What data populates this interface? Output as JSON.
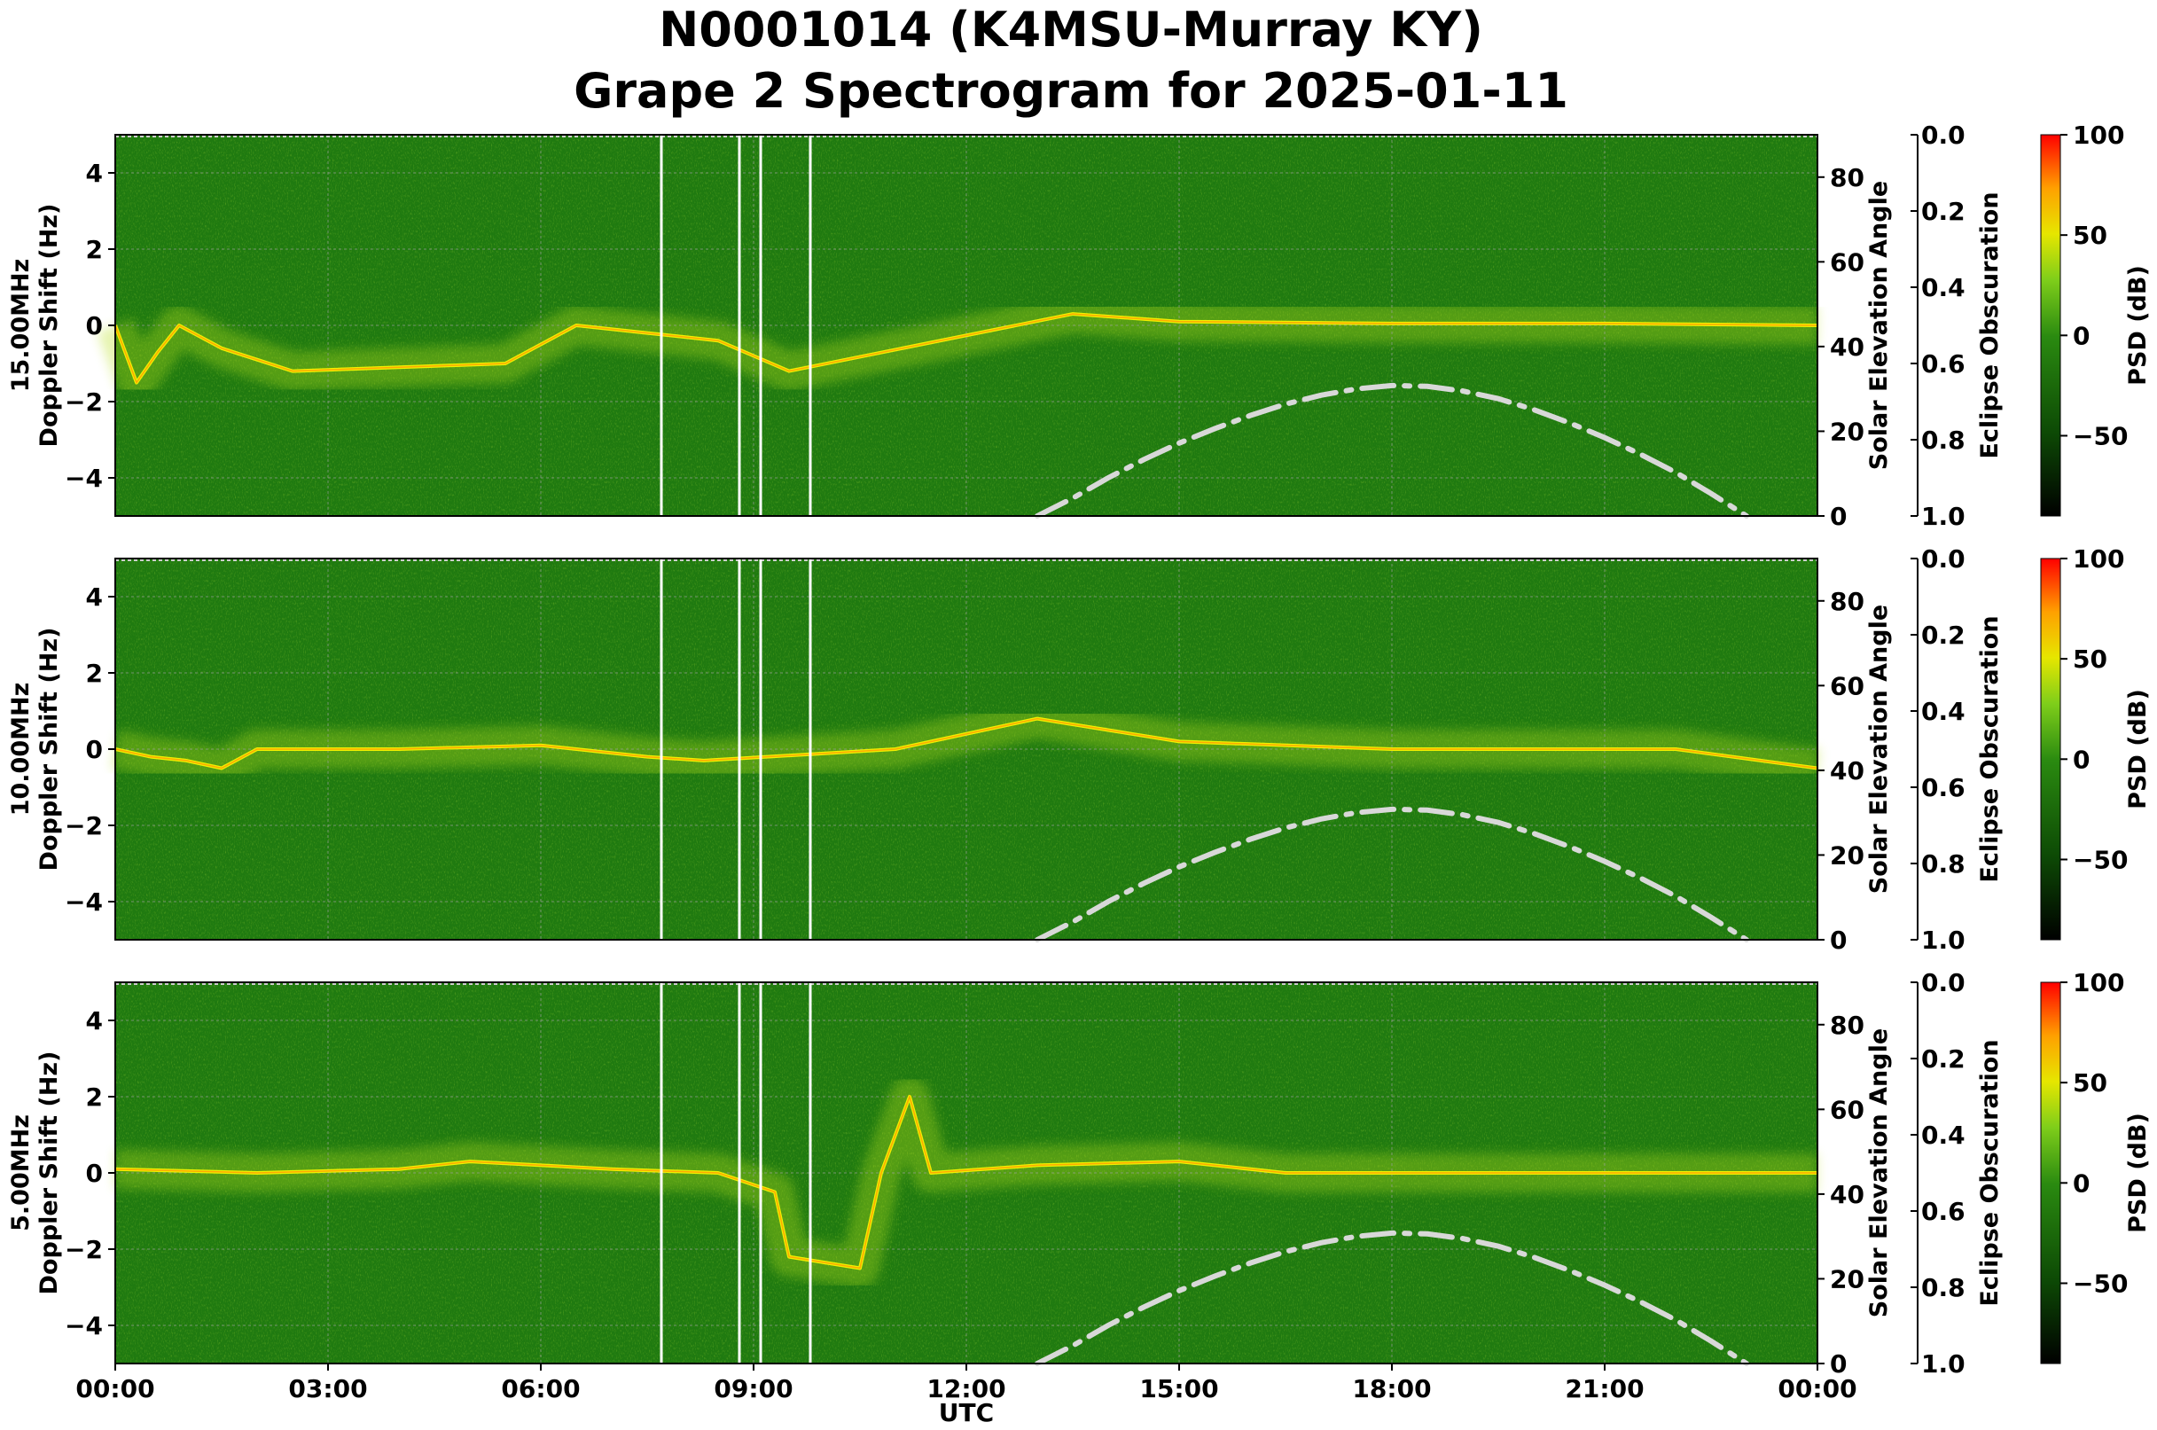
{
  "title_line1": "N0001014 (K4MSU-Murray KY)",
  "title_line2": "Grape 2 Spectrogram for 2025-01-11",
  "colors": {
    "background_green": "#1f7a10",
    "elevation_curve": "#d8d8d8",
    "gap_lines": "#ffffff",
    "grid": "#9aa09a"
  },
  "chart_data": [
    {
      "type": "heatmap",
      "panel": "15.00MHz",
      "ylabel_line1": "15.00MHz",
      "ylabel_line2": "Doppler Shift (Hz)",
      "ylim": [
        -5,
        5
      ],
      "yticks": [
        "−4",
        "−2",
        "0",
        "2",
        "4"
      ],
      "right_ylabel": "Solar Elevation Angle",
      "right_ylim": [
        0,
        90
      ],
      "right_yticks": [
        "0",
        "20",
        "40",
        "60",
        "80"
      ],
      "eclipse_label": "Eclipse Obscuration",
      "eclipse_ticks": [
        "0.0",
        "0.2",
        "0.4",
        "0.6",
        "0.8",
        "1.0"
      ],
      "colorbar_label": "PSD (dB)",
      "colorbar_ticks": [
        "100",
        "50",
        "0",
        "−50"
      ],
      "colorbar_range": [
        -90,
        100
      ],
      "gaps_hours": [
        7.7,
        8.8,
        9.1,
        9.8
      ],
      "trace": [
        [
          0,
          0
        ],
        [
          0.3,
          -1.5
        ],
        [
          0.6,
          -0.7
        ],
        [
          0.9,
          0
        ],
        [
          1.5,
          -0.6
        ],
        [
          2,
          -0.9
        ],
        [
          2.5,
          -1.2
        ],
        [
          5.5,
          -1
        ],
        [
          6.5,
          0
        ],
        [
          7.5,
          -0.2
        ],
        [
          8.5,
          -0.4
        ],
        [
          9.5,
          -1.2
        ],
        [
          13.5,
          0.3
        ],
        [
          15,
          0.1
        ],
        [
          18,
          0.05
        ],
        [
          21,
          0.05
        ],
        [
          24,
          0
        ]
      ]
    },
    {
      "type": "heatmap",
      "panel": "10.00MHz",
      "ylabel_line1": "10.00MHz",
      "ylabel_line2": "Doppler Shift (Hz)",
      "ylim": [
        -5,
        5
      ],
      "yticks": [
        "−4",
        "−2",
        "0",
        "2",
        "4"
      ],
      "right_ylabel": "Solar Elevation Angle",
      "right_ylim": [
        0,
        90
      ],
      "right_yticks": [
        "0",
        "20",
        "40",
        "60",
        "80"
      ],
      "eclipse_label": "Eclipse Obscuration",
      "eclipse_ticks": [
        "0.0",
        "0.2",
        "0.4",
        "0.6",
        "0.8",
        "1.0"
      ],
      "colorbar_label": "PSD (dB)",
      "colorbar_ticks": [
        "100",
        "50",
        "0",
        "−50"
      ],
      "colorbar_range": [
        -90,
        100
      ],
      "gaps_hours": [
        7.7,
        8.8,
        9.1,
        9.8
      ],
      "trace": [
        [
          0,
          0
        ],
        [
          0.5,
          -0.2
        ],
        [
          1,
          -0.3
        ],
        [
          1.5,
          -0.5
        ],
        [
          2,
          0
        ],
        [
          4,
          0
        ],
        [
          6,
          0.1
        ],
        [
          7.5,
          -0.2
        ],
        [
          8.3,
          -0.3
        ],
        [
          11,
          0
        ],
        [
          13,
          0.8
        ],
        [
          14,
          0.5
        ],
        [
          15,
          0.2
        ],
        [
          18,
          0
        ],
        [
          22,
          0
        ],
        [
          24,
          -0.5
        ]
      ]
    },
    {
      "type": "heatmap",
      "panel": "5.00MHz",
      "ylabel_line1": "5.00MHz",
      "ylabel_line2": "Doppler Shift (Hz)",
      "ylim": [
        -5,
        5
      ],
      "yticks": [
        "−4",
        "−2",
        "0",
        "2",
        "4"
      ],
      "right_ylabel": "Solar Elevation Angle",
      "right_ylim": [
        0,
        90
      ],
      "right_yticks": [
        "0",
        "20",
        "40",
        "60",
        "80"
      ],
      "eclipse_label": "Eclipse Obscuration",
      "eclipse_ticks": [
        "0.0",
        "0.2",
        "0.4",
        "0.6",
        "0.8",
        "1.0"
      ],
      "colorbar_label": "PSD (dB)",
      "colorbar_ticks": [
        "100",
        "50",
        "0",
        "−50"
      ],
      "colorbar_range": [
        -90,
        100
      ],
      "gaps_hours": [
        7.7,
        8.8,
        9.1,
        9.8
      ],
      "trace": [
        [
          0,
          0.1
        ],
        [
          2,
          0
        ],
        [
          4,
          0.1
        ],
        [
          5,
          0.3
        ],
        [
          7,
          0.1
        ],
        [
          8.5,
          0
        ],
        [
          9.3,
          -0.5
        ],
        [
          9.5,
          -2.2
        ],
        [
          10.5,
          -2.5
        ],
        [
          10.8,
          0
        ],
        [
          11.2,
          2
        ],
        [
          11.5,
          0
        ],
        [
          13,
          0.2
        ],
        [
          15,
          0.3
        ],
        [
          16.5,
          0
        ],
        [
          24,
          0
        ]
      ]
    }
  ],
  "solar_elevation": {
    "hours": [
      13.0,
      13.5,
      14,
      14.5,
      15,
      15.5,
      16,
      16.5,
      17,
      17.5,
      18,
      18.5,
      19,
      19.5,
      20,
      20.5,
      21,
      21.5,
      22,
      22.5,
      23.0
    ],
    "degrees": [
      0,
      4.2,
      9.0,
      13.3,
      17.2,
      20.6,
      23.7,
      26.4,
      28.5,
      30.0,
      30.8,
      30.6,
      29.5,
      27.7,
      25.1,
      22.0,
      18.5,
      14.6,
      10.3,
      5.3,
      0
    ]
  },
  "xaxis": {
    "label": "UTC",
    "ticks": [
      "00:00",
      "03:00",
      "06:00",
      "09:00",
      "12:00",
      "15:00",
      "18:00",
      "21:00",
      "00:00"
    ],
    "xlim_hours": [
      0,
      24
    ]
  }
}
